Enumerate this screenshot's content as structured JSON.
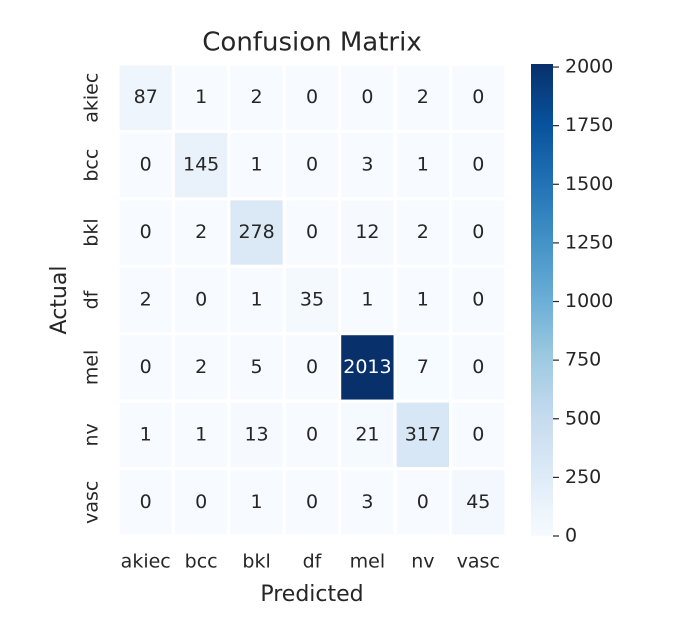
{
  "chart_data": {
    "type": "heatmap",
    "title": "Confusion Matrix",
    "xlabel": "Predicted",
    "ylabel": "Actual",
    "x_categories": [
      "akiec",
      "bcc",
      "bkl",
      "df",
      "mel",
      "nv",
      "vasc"
    ],
    "y_categories": [
      "akiec",
      "bcc",
      "bkl",
      "df",
      "mel",
      "nv",
      "vasc"
    ],
    "values": [
      [
        87,
        1,
        2,
        0,
        0,
        2,
        0
      ],
      [
        0,
        145,
        1,
        0,
        3,
        1,
        0
      ],
      [
        0,
        2,
        278,
        0,
        12,
        2,
        0
      ],
      [
        2,
        0,
        1,
        35,
        1,
        1,
        0
      ],
      [
        0,
        2,
        5,
        0,
        2013,
        7,
        0
      ],
      [
        1,
        1,
        13,
        0,
        21,
        317,
        0
      ],
      [
        0,
        0,
        1,
        0,
        3,
        0,
        45
      ]
    ],
    "colors": [
      "#f7fbff",
      "#deebf7",
      "#c6dbef",
      "#9ecae1",
      "#6baed6",
      "#4292c6",
      "#2171b5",
      "#08519c",
      "#08306b"
    ],
    "colorbar_lim": [
      0,
      2013
    ],
    "colorbar_ticks": [
      0,
      250,
      500,
      750,
      1000,
      1250,
      1500,
      1750,
      2000
    ]
  }
}
